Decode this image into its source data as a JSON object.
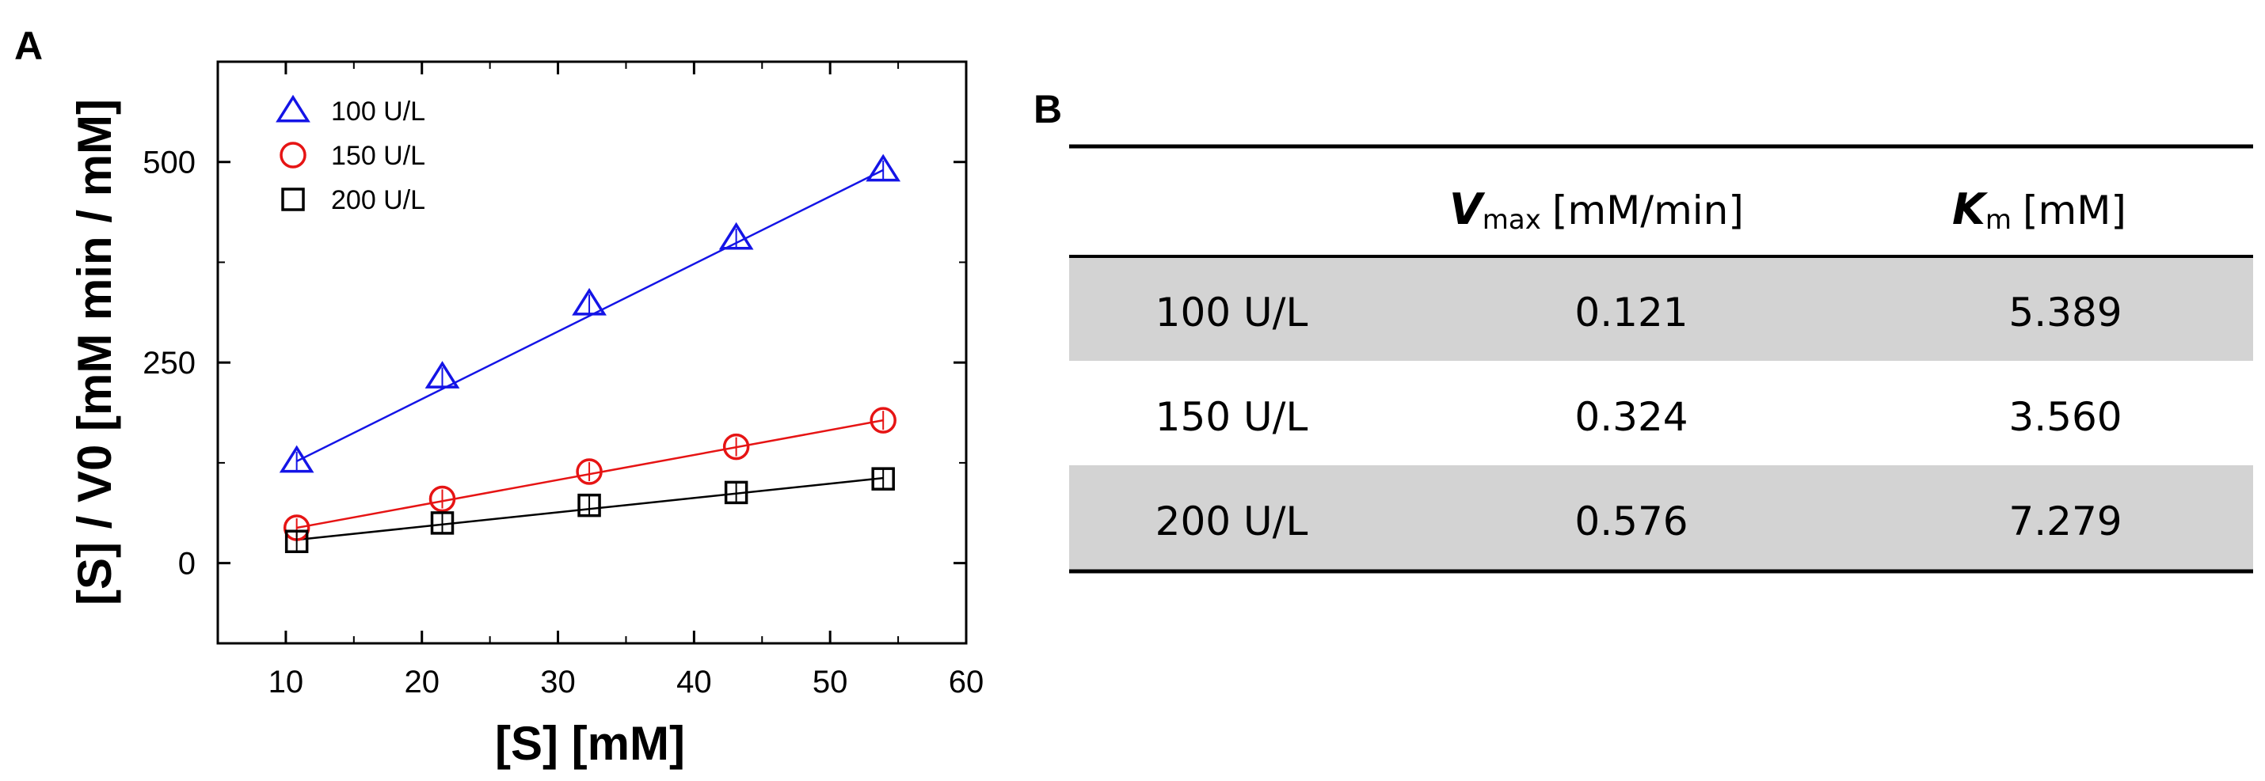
{
  "panel_a_label": "A",
  "panel_b_label": "B",
  "chart_data": {
    "type": "scatter",
    "title": "",
    "xlabel": "[S] [mM]",
    "ylabel": "[S] / V0 [mM min / mM]",
    "xlim": [
      5,
      60
    ],
    "ylim": [
      -100,
      625
    ],
    "xticks": [
      10,
      20,
      30,
      40,
      50,
      60
    ],
    "yticks": [
      0,
      250,
      500
    ],
    "legend_position": "top-left",
    "series": [
      {
        "name": "100 U/L",
        "color": "#1414e6",
        "marker": "triangle",
        "x": [
          10.8,
          21.5,
          32.3,
          43.1,
          53.9
        ],
        "y": [
          127,
          232,
          323,
          405,
          490
        ],
        "fit": [
          [
            10.8,
            127
          ],
          [
            53.9,
            490
          ]
        ]
      },
      {
        "name": "150 U/L",
        "color": "#e61414",
        "marker": "circle",
        "x": [
          10.8,
          21.5,
          32.3,
          43.1,
          53.9
        ],
        "y": [
          44,
          80,
          114,
          145,
          178
        ],
        "fit": [
          [
            10.8,
            44
          ],
          [
            53.9,
            178
          ]
        ]
      },
      {
        "name": "200 U/L",
        "color": "#000000",
        "marker": "square",
        "x": [
          10.8,
          21.5,
          32.3,
          43.1,
          53.9
        ],
        "y": [
          27,
          50,
          72,
          88,
          105
        ],
        "fit": [
          [
            10.8,
            29
          ],
          [
            53.9,
            106
          ]
        ]
      }
    ]
  },
  "table": {
    "col_vmax_main": "V",
    "col_vmax_sub": "max",
    "col_vmax_unit": "[mM/min]",
    "col_km_main": "K",
    "col_km_sub": "m",
    "col_km_unit": "[mM]",
    "rows": [
      {
        "label": "100 U/L",
        "vmax": "0.121",
        "km": "5.389",
        "shaded": true
      },
      {
        "label": "150 U/L",
        "vmax": "0.324",
        "km": "3.560",
        "shaded": false
      },
      {
        "label": "200 U/L",
        "vmax": "0.576",
        "km": "7.279",
        "shaded": true
      }
    ],
    "shade_color": "#d3d3d3"
  }
}
